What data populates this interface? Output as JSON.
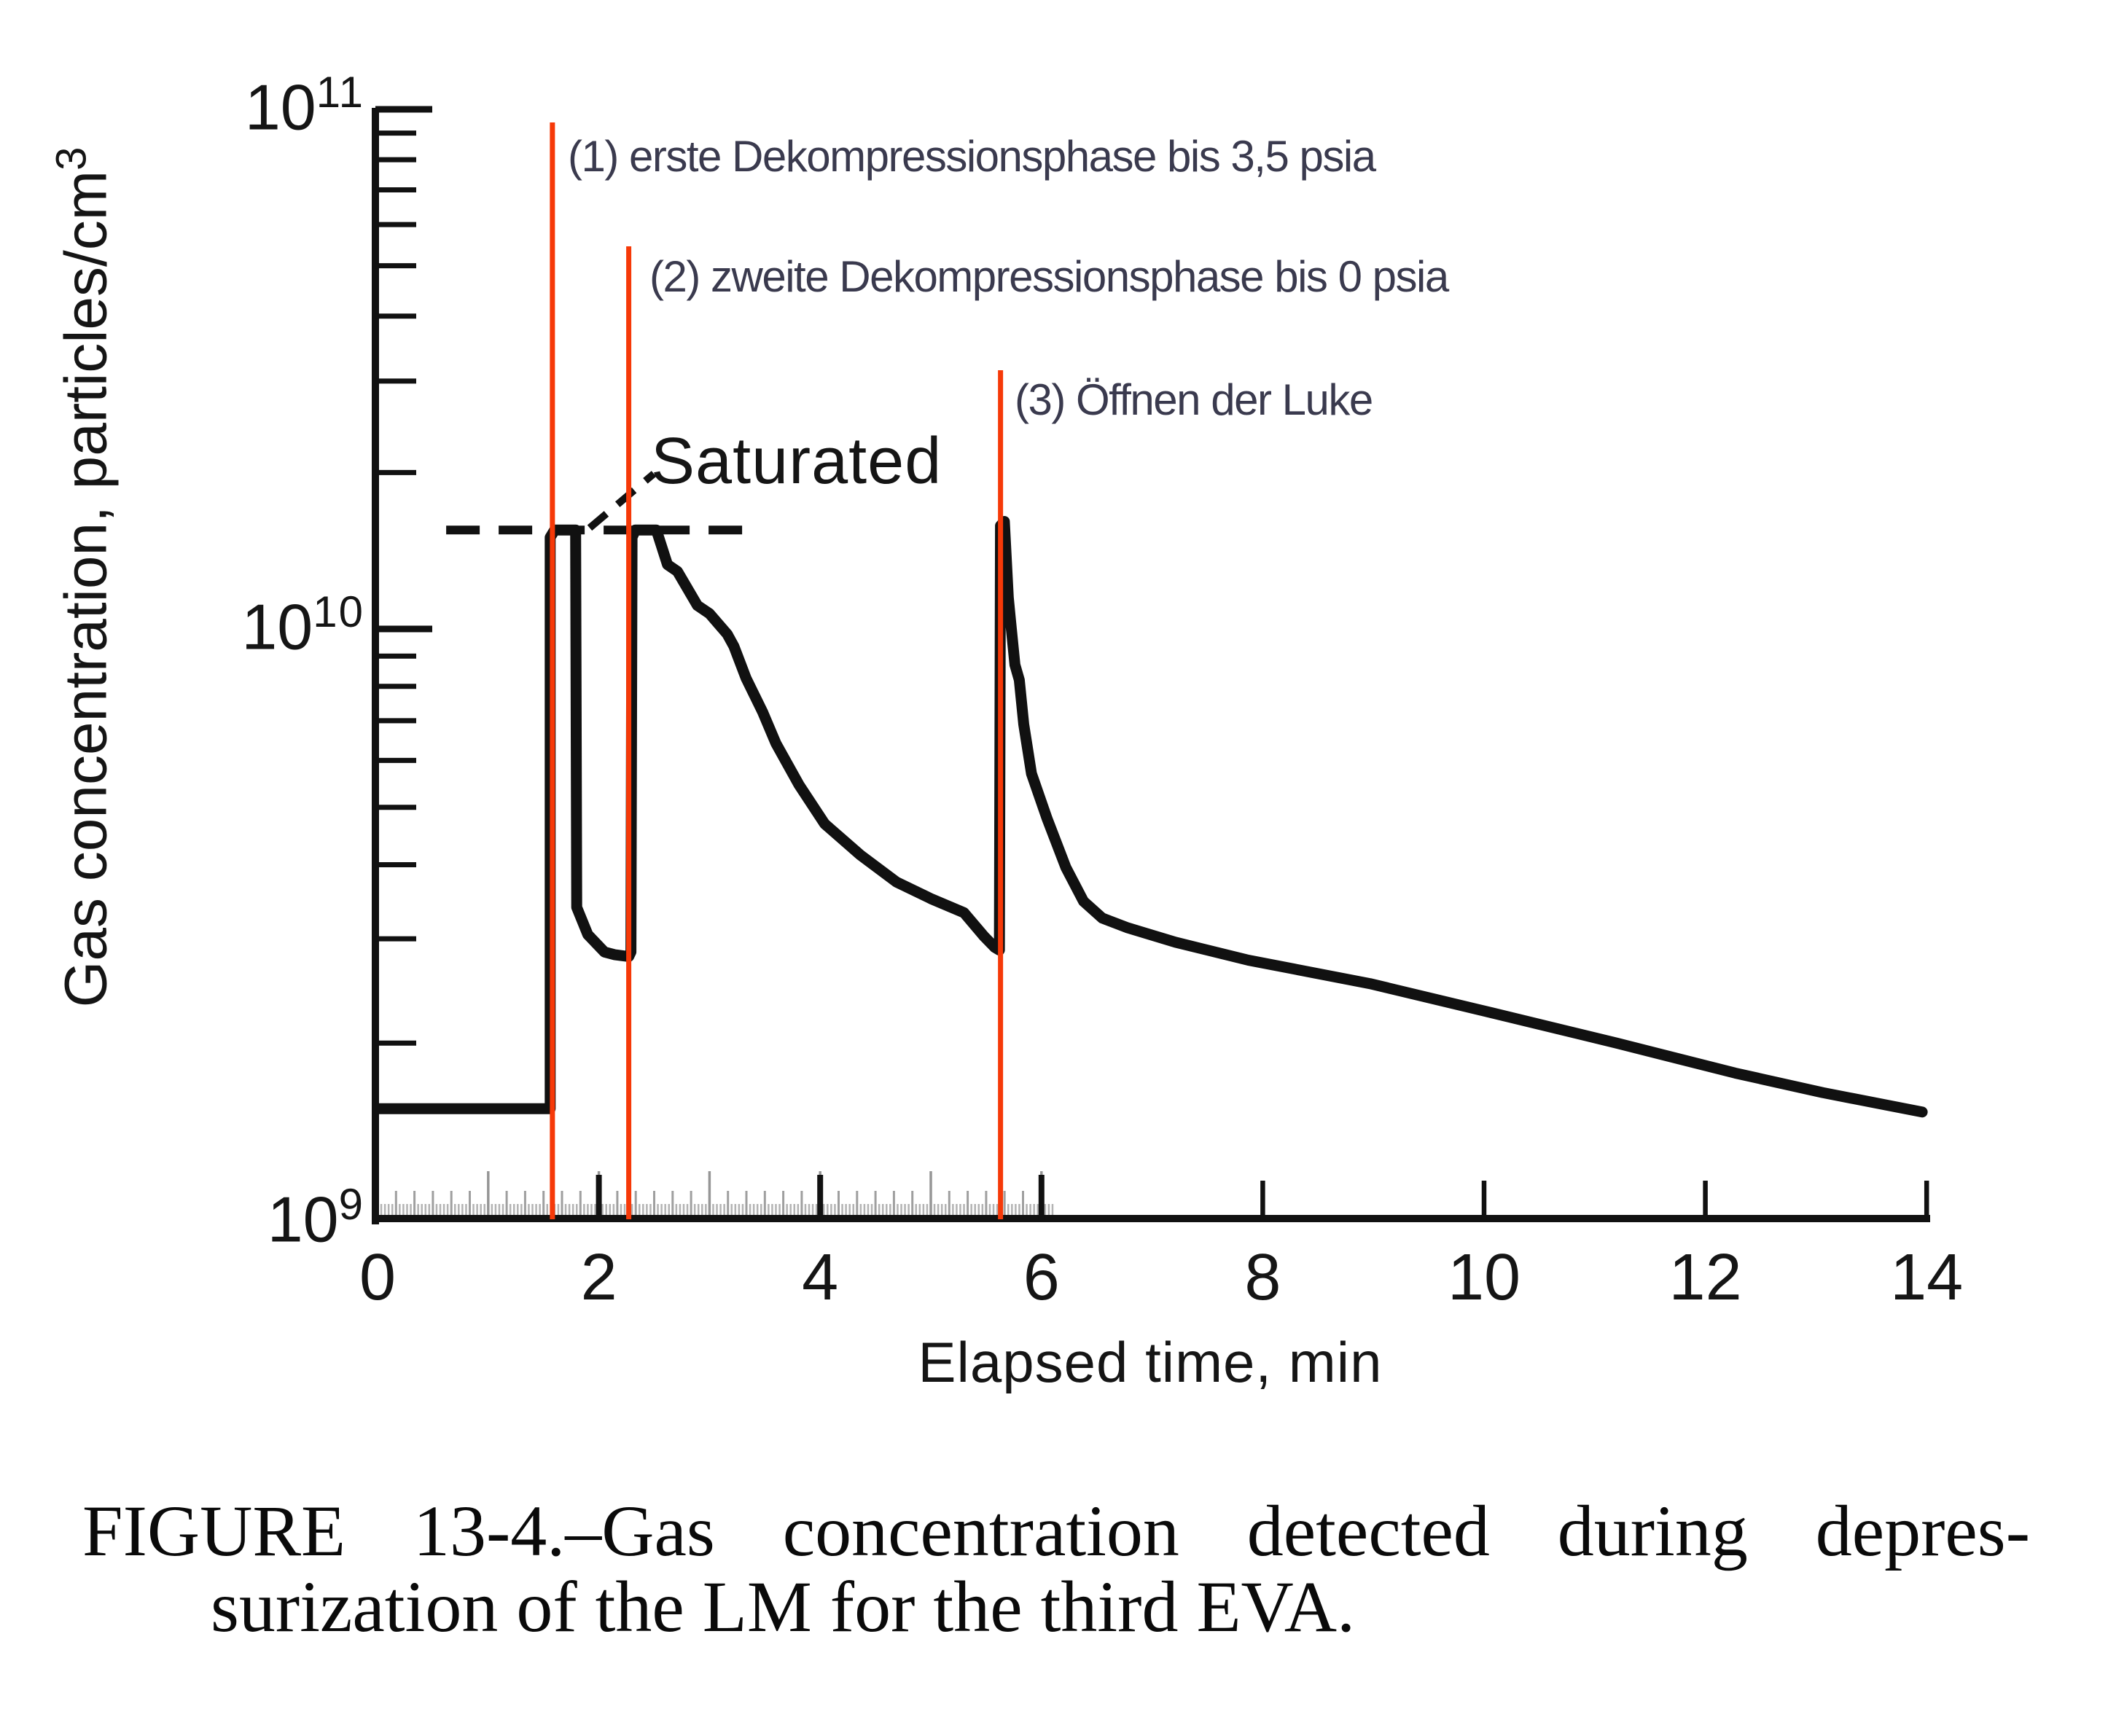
{
  "figure": {
    "caption_line1": "FIGURE 13-4.–Gas concentration detected during depres-",
    "caption_line2": "surization of the LM for the third EVA."
  },
  "chart_data": {
    "type": "line",
    "title": "",
    "xlabel": "Elapsed time, min",
    "ylabel_text": "Gas concentration, particles/cm",
    "ylabel_exponent": "3",
    "xlim": [
      0,
      14
    ],
    "x_ticks": [
      0,
      2,
      4,
      6,
      8,
      10,
      12,
      14
    ],
    "x_major_spike_ticks": [
      2,
      4,
      6
    ],
    "y_scale": "log",
    "ylim": [
      1000000000.0,
      100000000000.0
    ],
    "y_decade_labels": [
      {
        "base": "10",
        "exp": "9",
        "value": 1000000000.0
      },
      {
        "base": "10",
        "exp": "10",
        "value": 10000000000.0
      },
      {
        "base": "10",
        "exp": "11",
        "value": 100000000000.0
      }
    ],
    "grid": false,
    "legend": "none",
    "saturated_label": "Saturated",
    "saturated_level": 15500000000.0,
    "saturated_line_span_min": [
      0.62,
      3.44
    ],
    "seconds_ruler": {
      "start_min": 0,
      "end_min": 6.12,
      "fine_per_min": 30,
      "medium_per_min": 6,
      "tall_per_min": 1
    },
    "events": [
      {
        "label": "(1) erste Dekompressionsphase bis 3,5 psia",
        "time_min": 1.58
      },
      {
        "label": "(2) zweite Dekompressionsphase bis 0 psia",
        "time_min": 2.27
      },
      {
        "label": "(3) Öffnen der Luke",
        "time_min": 5.63
      }
    ],
    "series": [
      {
        "name": "Gas concentration",
        "points": [
          [
            0.0,
            1550000000.0
          ],
          [
            1.53,
            1550000000.0
          ],
          [
            1.56,
            1550000000.0
          ],
          [
            1.56,
            15000000000.0
          ],
          [
            1.6,
            15500000000.0
          ],
          [
            1.79,
            15500000000.0
          ],
          [
            1.8,
            3390000000.0
          ],
          [
            1.9,
            3050000000.0
          ],
          [
            2.05,
            2850000000.0
          ],
          [
            2.14,
            2820000000.0
          ],
          [
            2.27,
            2800000000.0
          ],
          [
            2.29,
            2850000000.0
          ],
          [
            2.3,
            15000000000.0
          ],
          [
            2.33,
            15500000000.0
          ],
          [
            2.52,
            15500000000.0
          ],
          [
            2.62,
            13300000000.0
          ],
          [
            2.71,
            12900000000.0
          ],
          [
            2.89,
            11100000000.0
          ],
          [
            3.0,
            10700000000.0
          ],
          [
            3.16,
            9800000000.0
          ],
          [
            3.22,
            9350000000.0
          ],
          [
            3.33,
            8260000000.0
          ],
          [
            3.48,
            7240000000.0
          ],
          [
            3.6,
            6410000000.0
          ],
          [
            3.81,
            5450000000.0
          ],
          [
            4.04,
            4690000000.0
          ],
          [
            4.36,
            4160000000.0
          ],
          [
            4.69,
            3740000000.0
          ],
          [
            5.01,
            3500000000.0
          ],
          [
            5.3,
            3320000000.0
          ],
          [
            5.48,
            3030000000.0
          ],
          [
            5.58,
            2900000000.0
          ],
          [
            5.62,
            2870000000.0
          ],
          [
            5.63,
            15800000000.0
          ],
          [
            5.665,
            16100000000.0
          ],
          [
            5.7,
            11500000000.0
          ],
          [
            5.72,
            10400000000.0
          ],
          [
            5.76,
            8700000000.0
          ],
          [
            5.8,
            8200000000.0
          ],
          [
            5.84,
            6900000000.0
          ],
          [
            5.91,
            5700000000.0
          ],
          [
            6.05,
            4790000000.0
          ],
          [
            6.22,
            3960000000.0
          ],
          [
            6.38,
            3470000000.0
          ],
          [
            6.55,
            3250000000.0
          ],
          [
            6.78,
            3130000000.0
          ],
          [
            7.21,
            2960000000.0
          ],
          [
            7.87,
            2760000000.0
          ],
          [
            8.97,
            2520000000.0
          ],
          [
            10.07,
            2250000000.0
          ],
          [
            11.2,
            2000000000.0
          ],
          [
            12.27,
            1780000000.0
          ],
          [
            13.06,
            1650000000.0
          ],
          [
            13.96,
            1530000000.0
          ]
        ]
      }
    ]
  },
  "colors": {
    "curve": "#111111",
    "axis": "#111111",
    "event_line": "#f63908",
    "annotation_text": "#3a3a4e",
    "ruler_fine": "#b3b3b3",
    "ruler_medium": "#9f9f9f",
    "ruler_tall": "#969696",
    "background": "#ffffff"
  }
}
